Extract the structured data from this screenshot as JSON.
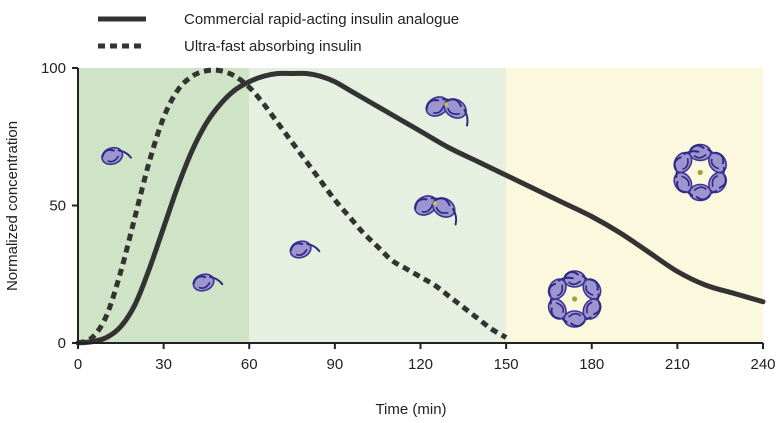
{
  "chart_data": {
    "type": "line",
    "xlabel": "Time (min)",
    "ylabel": "Normalized concentration",
    "xlim": [
      0,
      240
    ],
    "ylim": [
      0,
      100
    ],
    "x_ticks": [
      0,
      30,
      60,
      90,
      120,
      150,
      180,
      210,
      240
    ],
    "y_ticks": [
      0,
      50,
      100
    ],
    "x_tick_labels": [
      "0",
      "30",
      "60",
      "90",
      "120",
      "150",
      "180",
      "210",
      "240"
    ],
    "y_tick_labels": [
      "0",
      "50",
      "100"
    ],
    "grid": false,
    "legend_position": "top-left",
    "shaded_regions": [
      {
        "x": [
          0,
          60
        ],
        "color": "#cfe3c6"
      },
      {
        "x": [
          60,
          150
        ],
        "color": "#e6f0e0"
      },
      {
        "x": [
          150,
          240
        ],
        "color": "#fbf8dd"
      }
    ],
    "series": [
      {
        "name": "Commercial rapid-acting insulin analogue",
        "style": "solid",
        "color": "#333333",
        "x": [
          0,
          5,
          10,
          15,
          20,
          25,
          30,
          35,
          40,
          45,
          50,
          55,
          60,
          65,
          70,
          75,
          80,
          85,
          90,
          95,
          100,
          110,
          120,
          130,
          140,
          150,
          160,
          170,
          180,
          190,
          200,
          210,
          220,
          230,
          240
        ],
        "y": [
          0,
          0.5,
          2,
          6,
          14,
          27,
          42,
          57,
          70,
          80,
          87,
          92,
          95,
          97,
          98,
          98,
          98,
          97,
          95,
          92,
          89,
          83,
          77,
          71,
          66,
          61,
          56,
          51,
          46,
          40,
          33,
          26,
          21,
          18,
          15
        ]
      },
      {
        "name": "Ultra-fast absorbing insulin",
        "style": "dashed",
        "color": "#333333",
        "x": [
          0,
          5,
          10,
          15,
          20,
          25,
          30,
          35,
          40,
          45,
          50,
          55,
          60,
          65,
          70,
          75,
          80,
          85,
          90,
          95,
          100,
          105,
          110,
          115,
          120,
          125,
          130,
          135,
          140,
          145,
          150
        ],
        "y": [
          0,
          2,
          10,
          26,
          46,
          66,
          82,
          92,
          97,
          99,
          99,
          97,
          93,
          87,
          80,
          73,
          66,
          59,
          52,
          46,
          40,
          35,
          30,
          27,
          24,
          21,
          17,
          13,
          9,
          5,
          2
        ]
      }
    ]
  },
  "icons": [
    {
      "name": "insulin-monomer-icon",
      "x": 12,
      "y": 68
    },
    {
      "name": "insulin-monomer-icon",
      "x": 44,
      "y": 22
    },
    {
      "name": "insulin-monomer-icon",
      "x": 78,
      "y": 34
    },
    {
      "name": "insulin-dimer-icon",
      "x": 129,
      "y": 86
    },
    {
      "name": "insulin-dimer-icon",
      "x": 125,
      "y": 50
    },
    {
      "name": "insulin-hexamer-icon",
      "x": 174,
      "y": 16
    },
    {
      "name": "insulin-hexamer-icon",
      "x": 218,
      "y": 62
    }
  ]
}
